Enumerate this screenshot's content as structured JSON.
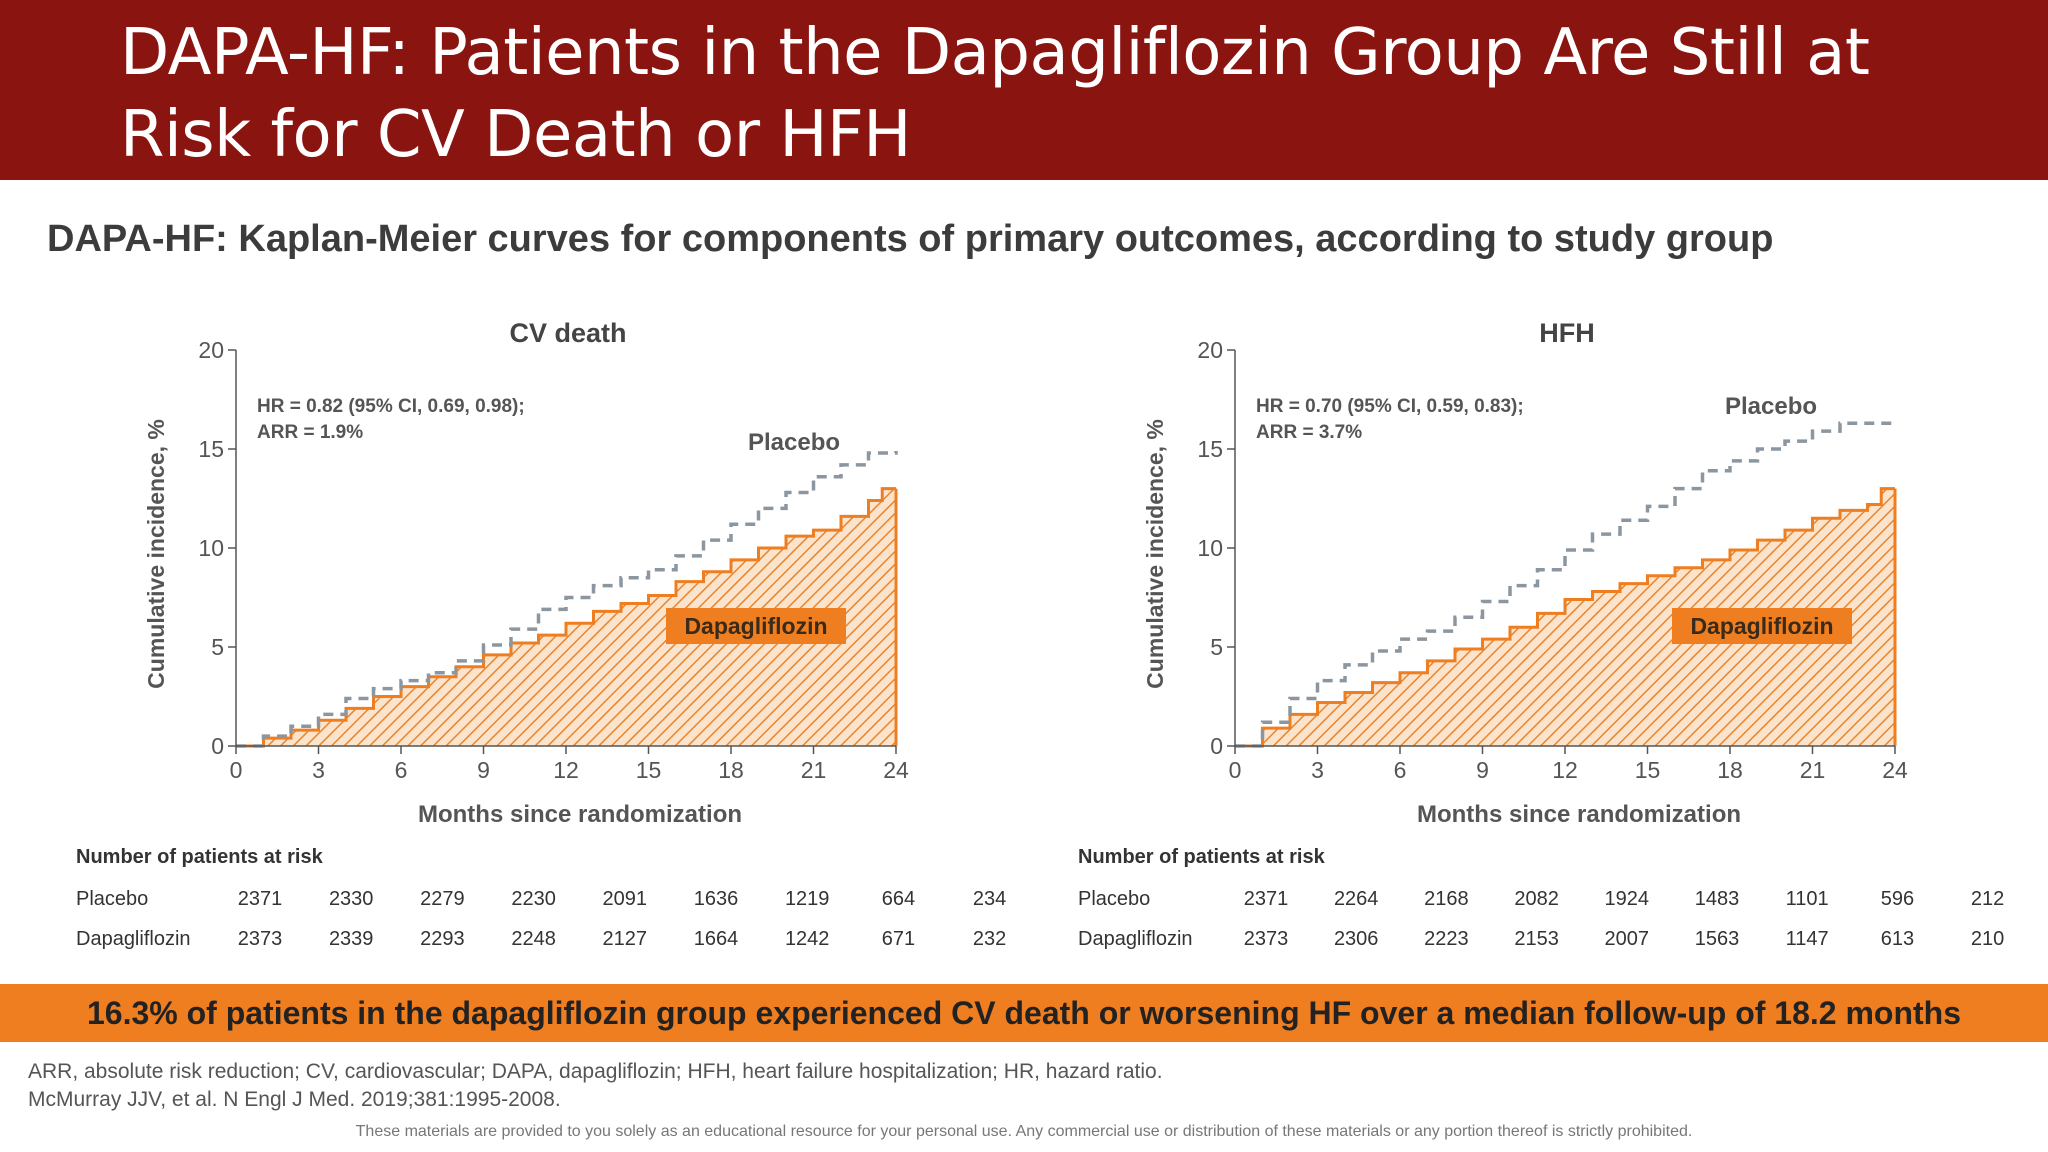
{
  "slide": {
    "title": "DAPA-HF: Patients in the Dapagliflozin Group Are Still at Risk for CV Death or HFH",
    "subtitle": "DAPA-HF: Kaplan-Meier curves for components of primary outcomes, according to study group",
    "banner": "16.3% of patients in the dapagliflozin group experienced CV death or worsening HF over a median follow-up of 18.2 months",
    "footnote_1": "ARR, absolute risk reduction; CV, cardiovascular; DAPA, dapagliflozin; HFH, heart failure hospitalization; HR, hazard ratio.",
    "footnote_2": "McMurray JJV, et al. N Engl J Med. 2019;381:1995-2008.",
    "disclaimer": "These materials are provided to you solely as an educational resource for your personal use. Any commercial use or distribution of these materials or any portion thereof is strictly prohibited.",
    "colors": {
      "title_bar": "#8a1410",
      "dapagliflozin": "#ef7e21",
      "placebo": "#8c96a0"
    }
  },
  "chart_data": [
    {
      "type": "line",
      "title": "CV death",
      "xlabel": "Months since randomization",
      "ylabel": "Cumulative incidence, %",
      "xlim": [
        0,
        24
      ],
      "ylim": [
        0,
        20
      ],
      "xticks": [
        0,
        3,
        6,
        9,
        12,
        15,
        18,
        21,
        24
      ],
      "yticks": [
        0,
        5,
        10,
        15,
        20
      ],
      "annotation_1": "HR = 0.82 (95% CI, 0.69, 0.98);",
      "annotation_2": "ARR = 1.9%",
      "series": [
        {
          "name": "Placebo",
          "style": "dashed",
          "x": [
            0,
            1,
            2,
            3,
            4,
            5,
            6,
            7,
            8,
            9,
            10,
            11,
            12,
            13,
            14,
            15,
            16,
            17,
            18,
            19,
            20,
            21,
            22,
            23,
            24
          ],
          "values": [
            0,
            0.5,
            1.0,
            1.6,
            2.4,
            2.9,
            3.3,
            3.7,
            4.3,
            5.1,
            5.9,
            6.9,
            7.5,
            8.1,
            8.5,
            8.9,
            9.6,
            10.4,
            11.2,
            12.0,
            12.8,
            13.6,
            14.2,
            14.8,
            14.9
          ]
        },
        {
          "name": "Dapagliflozin",
          "style": "filled-hatched",
          "x": [
            0,
            1,
            2,
            3,
            4,
            5,
            6,
            7,
            8,
            9,
            10,
            11,
            12,
            13,
            14,
            15,
            16,
            17,
            18,
            19,
            20,
            21,
            22,
            23,
            23.5,
            24
          ],
          "values": [
            0,
            0.4,
            0.8,
            1.3,
            1.9,
            2.5,
            3.0,
            3.5,
            4.0,
            4.6,
            5.2,
            5.6,
            6.2,
            6.8,
            7.2,
            7.6,
            8.3,
            8.8,
            9.4,
            10.0,
            10.6,
            10.9,
            11.6,
            12.4,
            13.0,
            13.0
          ]
        }
      ],
      "risk_table": {
        "title": "Number of patients at risk",
        "rows": [
          {
            "label": "Placebo",
            "values": [
              "2371",
              "2330",
              "2279",
              "2230",
              "2091",
              "1636",
              "1219",
              "664",
              "234"
            ]
          },
          {
            "label": "Dapagliflozin",
            "values": [
              "2373",
              "2339",
              "2293",
              "2248",
              "2127",
              "1664",
              "1242",
              "671",
              "232"
            ]
          }
        ]
      }
    },
    {
      "type": "line",
      "title": "HFH",
      "xlabel": "Months since randomization",
      "ylabel": "Cumulative incidence, %",
      "xlim": [
        0,
        24
      ],
      "ylim": [
        0,
        20
      ],
      "xticks": [
        0,
        3,
        6,
        9,
        12,
        15,
        18,
        21,
        24
      ],
      "yticks": [
        0,
        5,
        10,
        15,
        20
      ],
      "annotation_1": "HR = 0.70 (95% CI, 0.59, 0.83);",
      "annotation_2": "ARR = 3.7%",
      "series": [
        {
          "name": "Placebo",
          "style": "dashed",
          "x": [
            0,
            1,
            2,
            3,
            4,
            5,
            6,
            7,
            8,
            9,
            10,
            11,
            12,
            13,
            14,
            15,
            16,
            17,
            18,
            19,
            20,
            21,
            22,
            23,
            24
          ],
          "values": [
            0,
            1.2,
            2.4,
            3.3,
            4.1,
            4.8,
            5.4,
            5.8,
            6.5,
            7.3,
            8.1,
            8.9,
            9.9,
            10.7,
            11.4,
            12.1,
            13.0,
            13.9,
            14.4,
            15.0,
            15.4,
            15.9,
            16.3,
            16.3,
            16.3
          ]
        },
        {
          "name": "Dapagliflozin",
          "style": "filled-hatched",
          "x": [
            0,
            1,
            2,
            3,
            4,
            5,
            6,
            7,
            8,
            9,
            10,
            11,
            12,
            13,
            14,
            15,
            16,
            17,
            18,
            19,
            20,
            21,
            22,
            23,
            23.5,
            24
          ],
          "values": [
            0,
            0.9,
            1.6,
            2.2,
            2.7,
            3.2,
            3.7,
            4.3,
            4.9,
            5.4,
            6.0,
            6.7,
            7.4,
            7.8,
            8.2,
            8.6,
            9.0,
            9.4,
            9.9,
            10.4,
            10.9,
            11.5,
            11.9,
            12.2,
            13.0,
            13.0
          ]
        }
      ],
      "risk_table": {
        "title": "Number of patients at risk",
        "rows": [
          {
            "label": "Placebo",
            "values": [
              "2371",
              "2264",
              "2168",
              "2082",
              "1924",
              "1483",
              "1101",
              "596",
              "212"
            ]
          },
          {
            "label": "Dapagliflozin",
            "values": [
              "2373",
              "2306",
              "2223",
              "2153",
              "2007",
              "1563",
              "1147",
              "613",
              "210"
            ]
          }
        ]
      }
    }
  ]
}
